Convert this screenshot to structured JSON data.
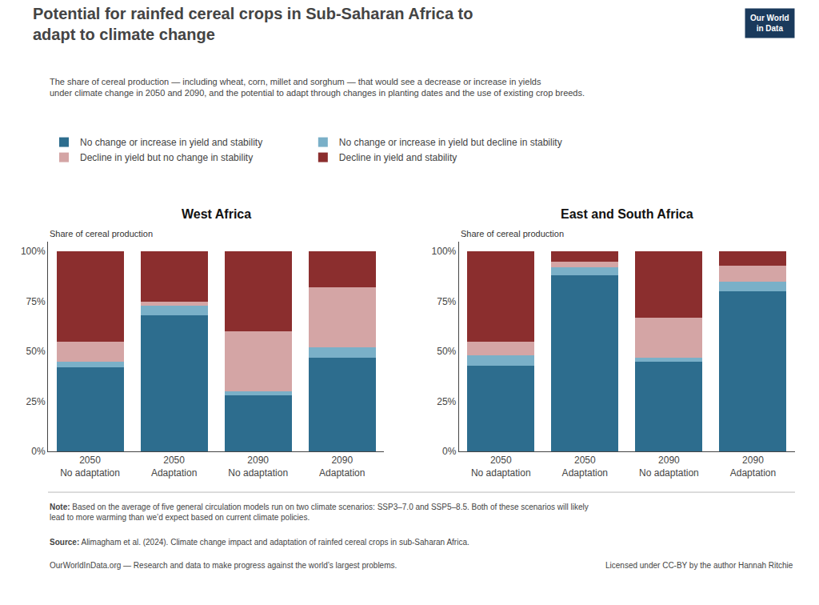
{
  "title": "Potential for rainfed cereal crops in Sub-Saharan Africa to\nadapt to climate change",
  "subtitle": "The share of cereal production — including wheat, corn, millet and sorghum — that would see a decrease or increase in yields\nunder climate change in 2050 and 2090, and the potential to adapt through changes in planting dates and the use of existing crop breeds.",
  "annotations": [
    "Note: Based on the average of five general circulation models run on two climate scenarios: SSP3–7.0 and SSP5–8.5. Both of these scenarios will likely lead to more warming than we’d expect based on current climate policies.",
    "Source: Alimagham et al. (2024). Climate change impact and adaptation of rainfed cereal crops in sub-Saharan Africa.",
    "OurWorldInData.org — Research and data to make progress against the world’s largest problems.",
    "Licensed under CC-BY by the author Hannah Ritchie",
    "Our World\nin Data"
  ],
  "chart_data": [
    {
      "type": "bar",
      "stacked": true,
      "title": "West Africa",
      "ylabel": "Share of cereal production",
      "categories": [
        "2050\nNo adaptation",
        "2050\nAdaptation",
        "2090\nNo adaptation",
        "2090\nAdaptation"
      ],
      "series": [
        {
          "name": "No change or increase in yield and stability",
          "color": "#2d6d8e",
          "values": [
            42,
            68,
            28,
            47
          ]
        },
        {
          "name": "No change or increase in yield but decline in stability",
          "color": "#7ab0c8",
          "values": [
            3,
            5,
            2,
            5
          ]
        },
        {
          "name": "Decline in yield but no change in stability",
          "color": "#d4a5a5",
          "values": [
            10,
            2,
            30,
            30
          ]
        },
        {
          "name": "Decline in yield and stability",
          "color": "#8b2e2e",
          "values": [
            45,
            25,
            40,
            18
          ]
        }
      ],
      "ylim": [
        0,
        105
      ],
      "yticks": [
        {
          "value": 0,
          "label": "0%"
        },
        {
          "value": 25,
          "label": "25%"
        },
        {
          "value": 50,
          "label": "50%"
        },
        {
          "value": 75,
          "label": "75%"
        },
        {
          "value": 100,
          "label": "100%"
        }
      ],
      "grid": false
    },
    {
      "type": "bar",
      "stacked": true,
      "title": "East and South Africa",
      "ylabel": "Share of cereal production",
      "categories": [
        "2050\nNo adaptation",
        "2050\nAdaptation",
        "2090\nNo adaptation",
        "2090\nAdaptation"
      ],
      "series": [
        {
          "name": "No change or increase in yield and stability",
          "color": "#2d6d8e",
          "values": [
            43,
            88,
            45,
            80
          ]
        },
        {
          "name": "No change or increase in yield but decline in stability",
          "color": "#7ab0c8",
          "values": [
            5,
            4,
            2,
            5
          ]
        },
        {
          "name": "Decline in yield but no change in stability",
          "color": "#d4a5a5",
          "values": [
            7,
            3,
            20,
            8
          ]
        },
        {
          "name": "Decline in yield and stability",
          "color": "#8b2e2e",
          "values": [
            45,
            5,
            33,
            7
          ]
        }
      ],
      "ylim": [
        0,
        105
      ],
      "yticks": [
        {
          "value": 0,
          "label": "0%"
        },
        {
          "value": 25,
          "label": "25%"
        },
        {
          "value": 50,
          "label": "50%"
        },
        {
          "value": 75,
          "label": "75%"
        },
        {
          "value": 100,
          "label": "100%"
        }
      ],
      "grid": false
    }
  ]
}
